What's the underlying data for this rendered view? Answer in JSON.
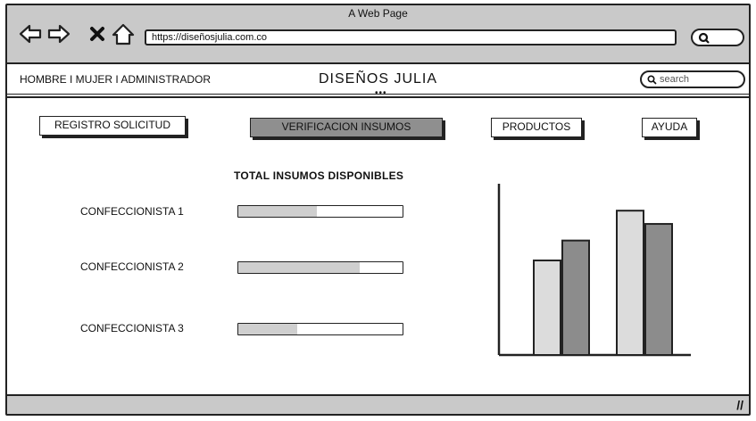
{
  "browser": {
    "title": "A Web Page",
    "url": "https://diseñosjulia.com.co",
    "icons": [
      "back-arrow-icon",
      "forward-arrow-icon",
      "close-x-icon",
      "home-icon",
      "search-icon"
    ]
  },
  "header": {
    "user_menu": "HOMBRE I MUJER I ADMINISTRADOR",
    "brand": "DISEÑOS JULIA",
    "search_placeholder": "search"
  },
  "nav": {
    "registro": "REGISTRO SOLICITUD",
    "verificacion": "VERIFICACION INSUMOS",
    "productos": "PRODUCTOS",
    "ayuda": "AYUDA",
    "active": "verificacion"
  },
  "main": {
    "section_title": "TOTAL INSUMOS DISPONIBLES",
    "rows": [
      {
        "label": "CONFECCIONISTA 1",
        "progress": 0.48
      },
      {
        "label": "CONFECCIONISTA 2",
        "progress": 0.74
      },
      {
        "label": "CONFECCIONISTA 3",
        "progress": 0.36
      }
    ]
  },
  "chart_data": {
    "type": "bar",
    "categories": [
      "",
      ""
    ],
    "series": [
      {
        "values": [
          57,
          87
        ]
      },
      {
        "values": [
          69,
          79
        ]
      }
    ],
    "ylim": [
      0,
      100
    ],
    "colors": [
      "#dcdcdc",
      "#8c8c8c"
    ],
    "grid": false,
    "title": "",
    "xlabel": "",
    "ylabel": ""
  }
}
